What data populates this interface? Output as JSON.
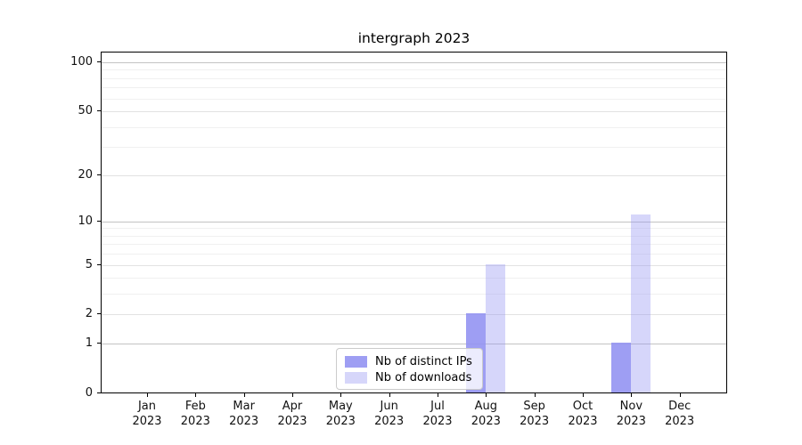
{
  "chart_data": {
    "type": "bar",
    "title": "intergraph 2023",
    "categories": [
      "Jan 2023",
      "Feb 2023",
      "Mar 2023",
      "Apr 2023",
      "May 2023",
      "Jun 2023",
      "Jul 2023",
      "Aug 2023",
      "Sep 2023",
      "Oct 2023",
      "Nov 2023",
      "Dec 2023"
    ],
    "series": [
      {
        "name": "Nb of distinct IPs",
        "values": [
          0,
          0,
          0,
          0,
          0,
          0,
          0,
          2,
          0,
          0,
          1,
          0
        ],
        "color": "rgba(148,148,242,0.9)"
      },
      {
        "name": "Nb of downloads",
        "values": [
          0,
          0,
          0,
          0,
          0,
          0,
          0,
          5,
          0,
          0,
          11,
          0
        ],
        "color": "rgba(148,148,242,0.38)"
      }
    ],
    "xlabel": "",
    "ylabel": "",
    "y_scale": "log1p",
    "ylim": [
      0,
      116
    ],
    "y_ticks": [
      0,
      1,
      2,
      5,
      10,
      20,
      50,
      100
    ],
    "grid": {
      "on": true,
      "major_lines": [
        1,
        10,
        100
      ],
      "mid_lines": [
        2,
        5,
        20,
        50
      ],
      "minor_lines": [
        3,
        4,
        6,
        7,
        8,
        9,
        30,
        40,
        60,
        70,
        80,
        90
      ]
    },
    "legend_position": "bottom-center"
  }
}
